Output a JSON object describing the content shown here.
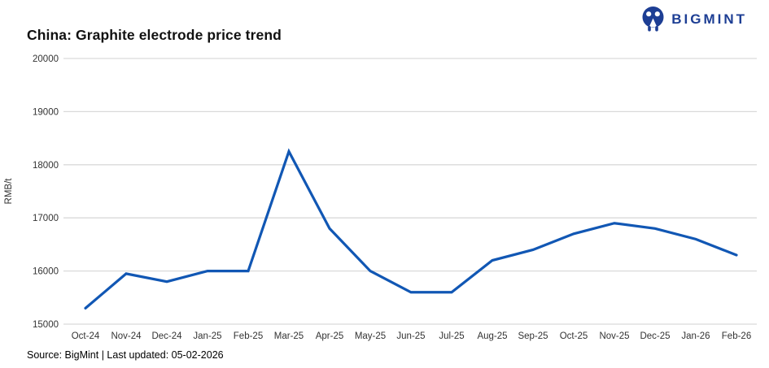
{
  "header": {
    "title": "China: Graphite electrode price trend",
    "logo_text": "BIGMINT"
  },
  "footer": {
    "source_note": "Source: BigMint | Last updated: 05-02-2026"
  },
  "colors": {
    "line": "#1157b4",
    "logo": "#1d3e94",
    "gridline": "#d9d9d9",
    "axis_text": "#333333"
  },
  "chart_data": {
    "type": "line",
    "title": "China: Graphite electrode price trend",
    "xlabel": "",
    "ylabel": "RMB/t",
    "ylim": [
      15000,
      20000
    ],
    "yticks": [
      15000,
      16000,
      17000,
      18000,
      19000,
      20000
    ],
    "grid": "horizontal",
    "legend": "none",
    "categories": [
      "Oct-24",
      "Nov-24",
      "Dec-24",
      "Jan-25",
      "Feb-25",
      "Mar-25",
      "Apr-25",
      "May-25",
      "Jun-25",
      "Jul-25",
      "Aug-25",
      "Sep-25",
      "Oct-25",
      "Nov-25",
      "Dec-25",
      "Jan-26",
      "Feb-26"
    ],
    "series": [
      {
        "name": "Graphite electrode price",
        "values": [
          15300,
          15950,
          15800,
          16000,
          16000,
          18250,
          16800,
          16000,
          15600,
          15600,
          16200,
          16400,
          16700,
          16900,
          16800,
          16600,
          16300
        ]
      }
    ]
  }
}
